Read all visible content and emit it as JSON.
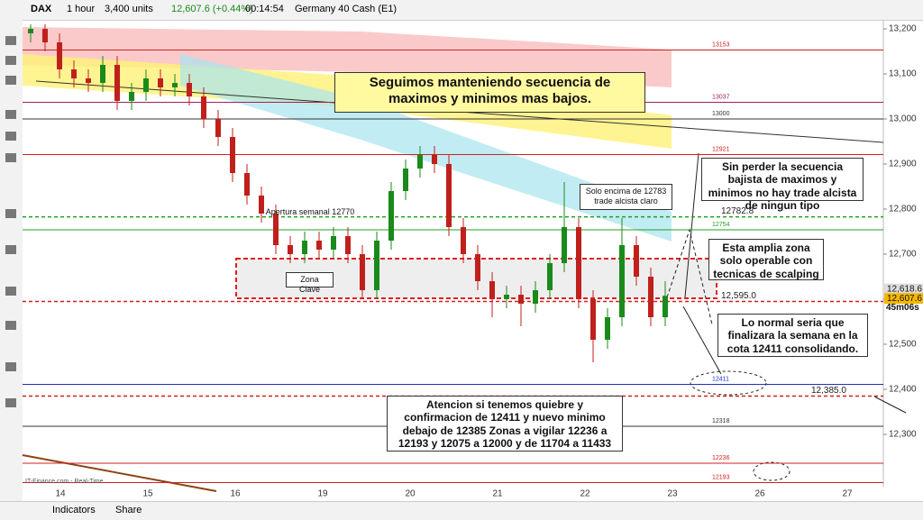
{
  "toolbar": {
    "symbol": "DAX",
    "interval": "1 hour",
    "units": "3,400 units",
    "price": "12,607.6 (+0.44%)",
    "clock": "00:14:54",
    "instrument": "Germany 40 Cash (E1)"
  },
  "bottom_bar": {
    "indicators": "Indicators",
    "share": "Share",
    "source": "IT-Finance.com - Real-Time"
  },
  "chart_data": {
    "type": "candlestick",
    "categories": [
      "14",
      "15",
      "16",
      "19",
      "20",
      "21",
      "22",
      "23",
      "26",
      "27"
    ],
    "series": {
      "open": [
        13190,
        13200,
        13170,
        13110,
        13090,
        13080,
        13120,
        13040,
        13060,
        13090,
        13070,
        13080,
        13050,
        13000,
        12960,
        12880,
        12830,
        12790,
        12720,
        12700,
        12730,
        12710,
        12740,
        12700,
        12620,
        12730,
        12840,
        12890,
        12920,
        12900,
        12760,
        12700,
        12640,
        12600,
        12610,
        12590,
        12620,
        12680,
        12760,
        12600,
        12510,
        12560,
        12720,
        12650,
        12560
      ],
      "high": [
        13210,
        13210,
        13190,
        13130,
        13110,
        13140,
        13140,
        13080,
        13110,
        13110,
        13100,
        13100,
        13070,
        13020,
        12980,
        12900,
        12850,
        12810,
        12740,
        12750,
        12750,
        12760,
        12760,
        12720,
        12750,
        12860,
        12910,
        12940,
        12940,
        12920,
        12780,
        12720,
        12660,
        12630,
        12630,
        12640,
        12700,
        12860,
        12780,
        12620,
        12580,
        12780,
        12740,
        12670,
        12640
      ],
      "low": [
        13170,
        13150,
        13090,
        13070,
        13060,
        13060,
        13020,
        13020,
        13040,
        13050,
        13050,
        13030,
        12980,
        12940,
        12860,
        12810,
        12770,
        12700,
        12680,
        12680,
        12690,
        12690,
        12680,
        12600,
        12600,
        12710,
        12820,
        12870,
        12880,
        12740,
        12680,
        12620,
        12560,
        12580,
        12540,
        12570,
        12600,
        12660,
        12580,
        12460,
        12490,
        12540,
        12630,
        12540,
        12540
      ],
      "close": [
        13200,
        13170,
        13110,
        13090,
        13080,
        13120,
        13040,
        13060,
        13090,
        13070,
        13080,
        13050,
        13000,
        12960,
        12880,
        12830,
        12790,
        12720,
        12700,
        12730,
        12710,
        12740,
        12700,
        12620,
        12730,
        12840,
        12890,
        12920,
        12900,
        12760,
        12700,
        12640,
        12600,
        12610,
        12590,
        12620,
        12680,
        12760,
        12600,
        12510,
        12560,
        12720,
        12650,
        12560,
        12607.6
      ]
    },
    "up_color": "#1a8a1a",
    "down_color": "#c0201c",
    "ylim": [
      12184,
      13214
    ],
    "yticks": [
      {
        "value": 13200,
        "label": "13,200"
      },
      {
        "value": 13100,
        "label": "13,100"
      },
      {
        "value": 13000,
        "label": "13,000"
      },
      {
        "value": 12900,
        "label": "12,900"
      },
      {
        "value": 12800,
        "label": "12,800"
      },
      {
        "value": 12700,
        "label": "12,700"
      },
      {
        "value": 12600,
        "label": "12,600"
      },
      {
        "value": 12500,
        "label": "12,500"
      },
      {
        "value": 12400,
        "label": "12,400"
      },
      {
        "value": 12300,
        "label": "12,300"
      }
    ],
    "levels": [
      {
        "value": 13153,
        "color": "#d02020"
      },
      {
        "value": 13037,
        "color": "#a02060"
      },
      {
        "value": 13000,
        "color": "#333333"
      },
      {
        "value": 12921,
        "color": "#d02020"
      },
      {
        "value": 12782.8,
        "color": "#20a020"
      },
      {
        "value": 12754,
        "color": "#20a020"
      },
      {
        "value": 12595,
        "label": "12,595.0",
        "color": "#d02020"
      },
      {
        "value": 12411,
        "color": "#2030c0"
      },
      {
        "value": 12385,
        "label": "12,385.0",
        "color": "#d02020"
      },
      {
        "value": 12318,
        "color": "#333333"
      },
      {
        "value": 12236,
        "color": "#d02020"
      },
      {
        "value": 12193,
        "color": "#d02020"
      }
    ],
    "price_tags": [
      {
        "value": 12618.6,
        "label": "12,618.6",
        "color": "#dddddd"
      },
      {
        "value": 12607.6,
        "label": "12,607.6",
        "color": "#f5b800"
      }
    ],
    "countdown": "45m06s",
    "annotations": [
      "Seguimos manteniendo secuencia de maximos y minimos mas bajos.",
      "Sin perder la secuencia bajista de maximos y minimos no hay trade alcista de ningun tipo",
      "Solo encima de 12783 trade alcista claro",
      "Esta amplia zona solo operable con tecnicas de scalping",
      "Lo normal seria que finalizara la semana en la cota 12411 consolidando.",
      "Atencion si tenemos quiebre y confirmacion de 12411 y nuevo minimo debajo de 12385 Zonas a vigilar 12236 a 12193 y 12075 a 12000 y de 11704 a 11433",
      "Zona Clave",
      "Apertura semanal 12770"
    ]
  }
}
